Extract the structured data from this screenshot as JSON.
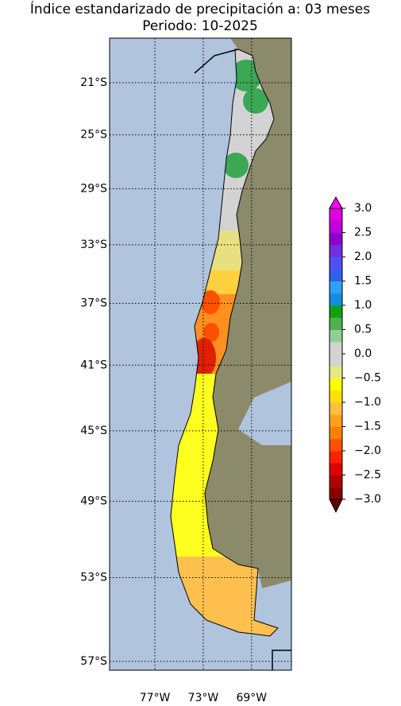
{
  "chart_data": {
    "type": "map",
    "title": "Índice estandarizado de precipitación a: 03 meses",
    "subtitle": "Periodo: 10-2025",
    "xlim": [
      -80.75,
      -65.7
    ],
    "ylim": [
      -57.4,
      -17.5
    ],
    "xticks": [
      {
        "value": -77,
        "label": "77°W"
      },
      {
        "value": -73,
        "label": "73°W"
      },
      {
        "value": -69,
        "label": "69°W"
      }
    ],
    "yticks": [
      {
        "value": -21,
        "label": "21°S"
      },
      {
        "value": -25,
        "label": "25°S"
      },
      {
        "value": -29,
        "label": "29°S"
      },
      {
        "value": -33,
        "label": "33°S"
      },
      {
        "value": -37,
        "label": "37°S"
      },
      {
        "value": -41,
        "label": "41°S"
      },
      {
        "value": -45,
        "label": "45°S"
      },
      {
        "value": -49,
        "label": "49°S"
      },
      {
        "value": -53,
        "label": "53°S"
      },
      {
        "value": -57,
        "label": "57°S"
      }
    ],
    "grid": true,
    "colorbar": {
      "clim": [
        -3,
        3
      ],
      "colors": [
        "#8b0000",
        "#b00000",
        "#e00000",
        "#ff2000",
        "#ff5000",
        "#ff8000",
        "#ffa020",
        "#ffc040",
        "#ffe000",
        "#ffff00",
        "#e8e880",
        "#d3d3d3",
        "#d3d3d3",
        "#90d090",
        "#50b050",
        "#10a010",
        "#1090e0",
        "#30a0f0",
        "#3060f0",
        "#5050f0",
        "#7030e0",
        "#9000d0",
        "#c000e0",
        "#e000e0"
      ],
      "under_color": "#600000",
      "over_color": "#ff00ff",
      "ticks": [
        {
          "value": 3,
          "label": "3.0"
        },
        {
          "value": 2.5,
          "label": "2.5"
        },
        {
          "value": 2,
          "label": "2.0"
        },
        {
          "value": 1.5,
          "label": "1.5"
        },
        {
          "value": 1,
          "label": "1.0"
        },
        {
          "value": 0.5,
          "label": "0.5"
        },
        {
          "value": 0,
          "label": "0.0"
        },
        {
          "value": -0.5,
          "label": "−0.5"
        },
        {
          "value": -1,
          "label": "−1.0"
        },
        {
          "value": -1.5,
          "label": "−1.5"
        },
        {
          "value": -2,
          "label": "−2.0"
        },
        {
          "value": -2.5,
          "label": "−2.5"
        },
        {
          "value": -3,
          "label": "−3.0"
        }
      ]
    }
  }
}
